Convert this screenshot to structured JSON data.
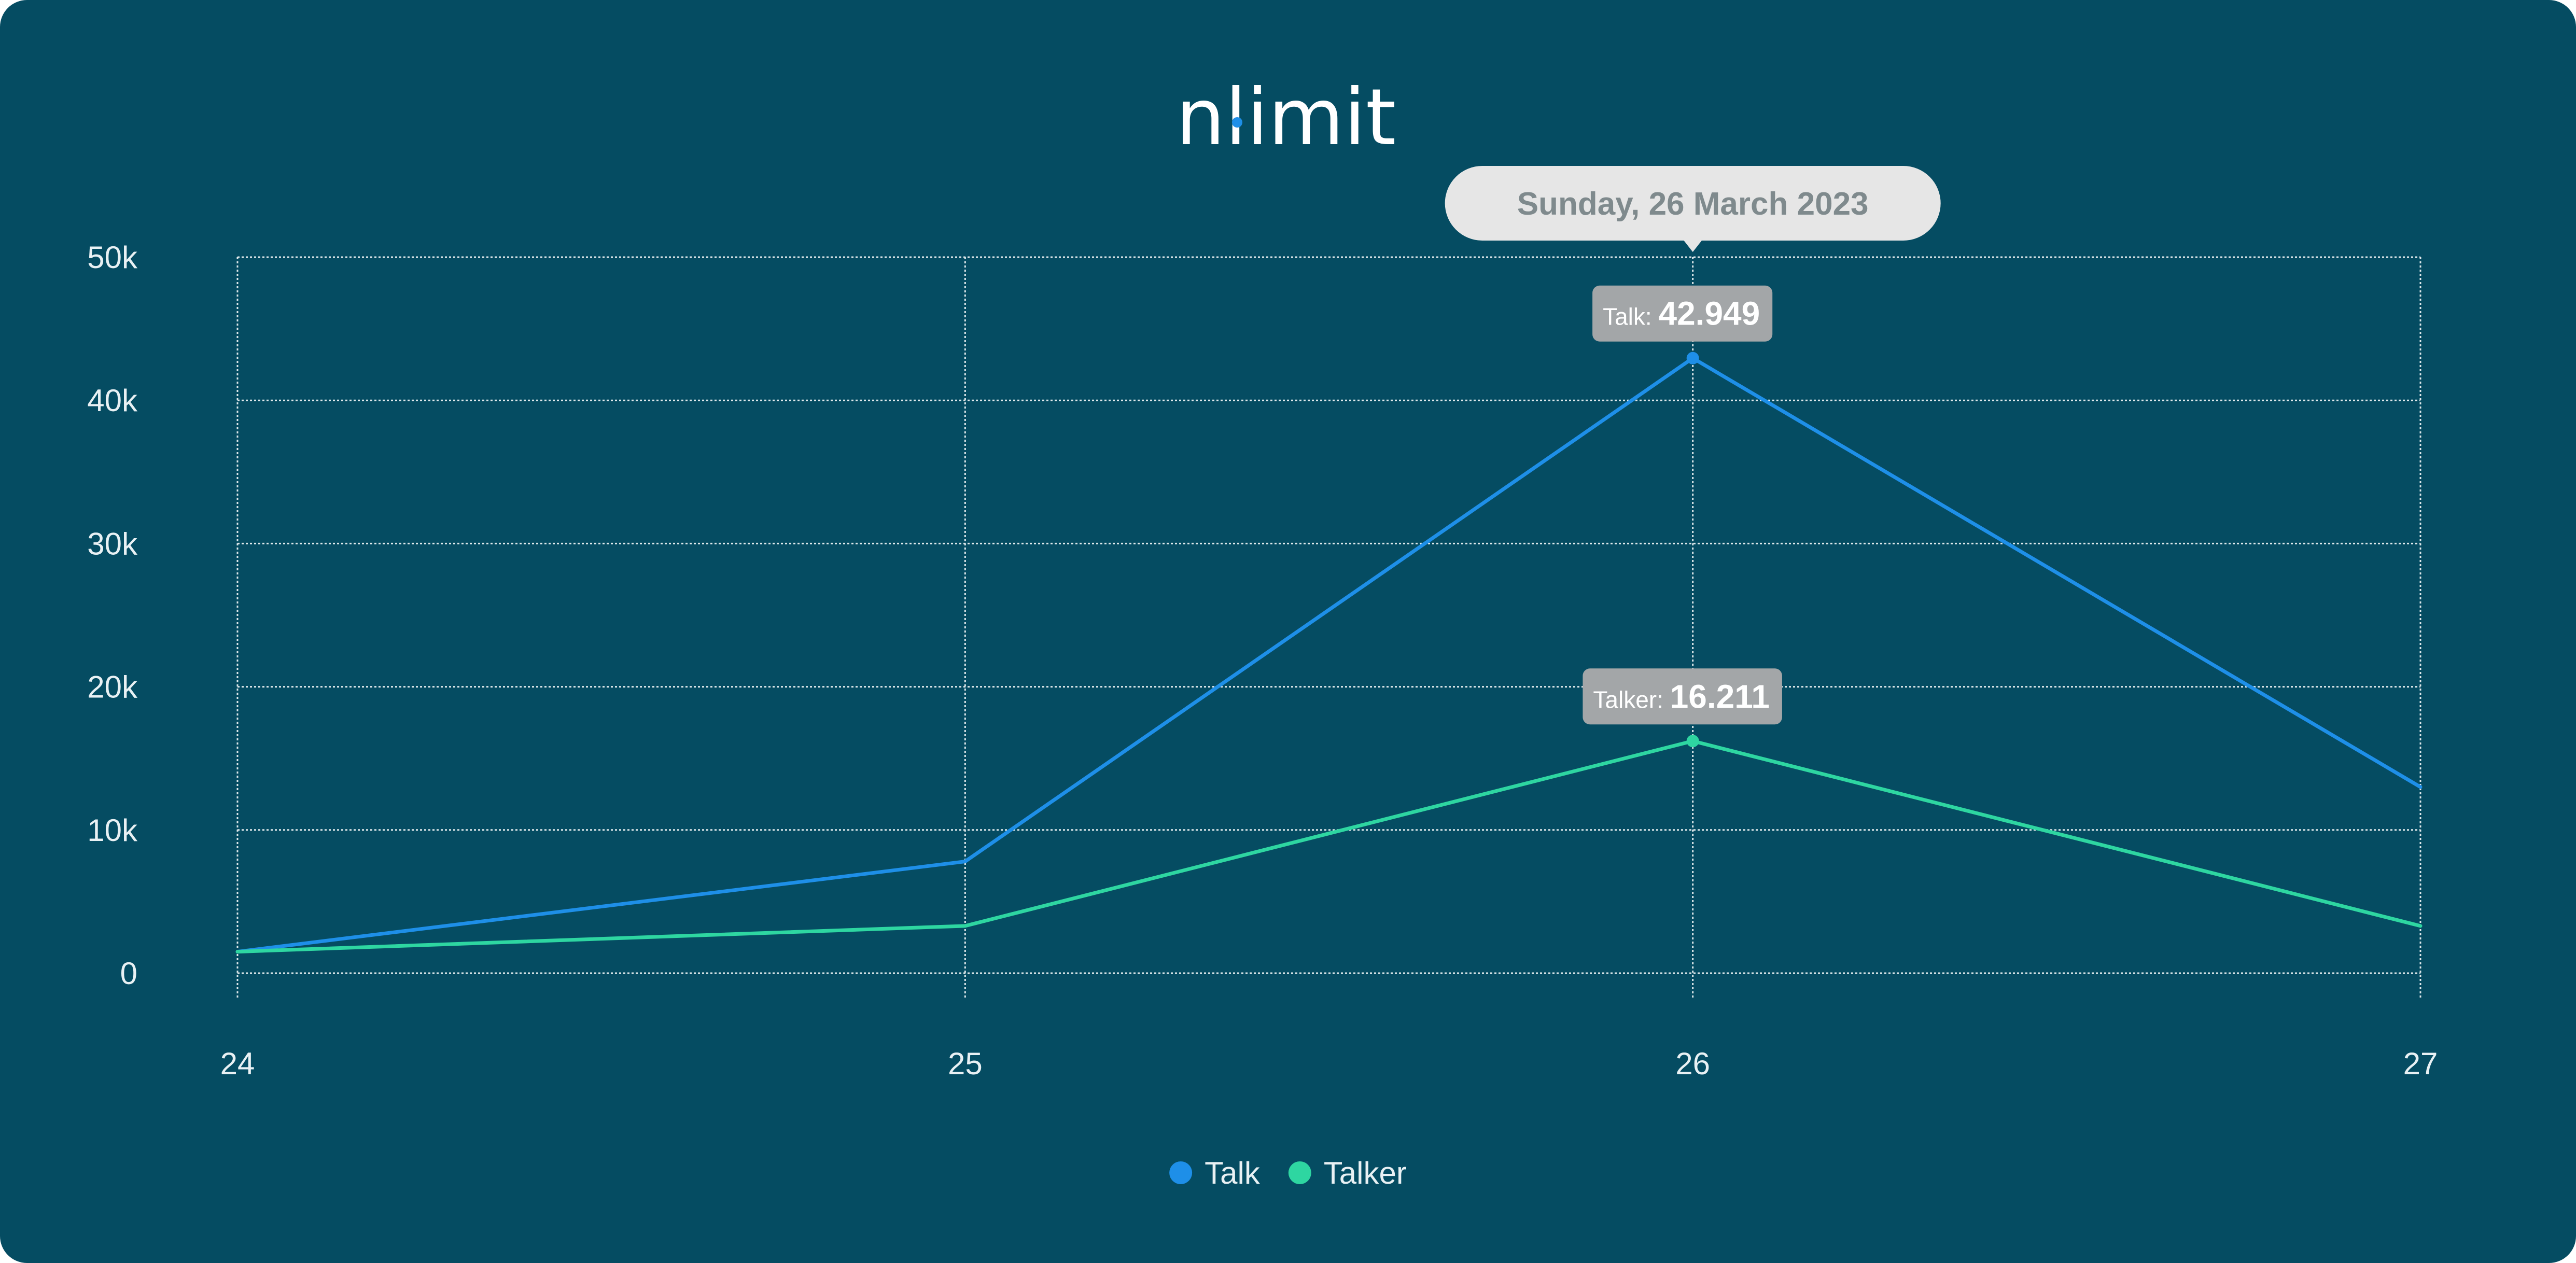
{
  "logo": {
    "text": "nlimit",
    "dot_color": "#1e8fe8"
  },
  "chart_data": {
    "type": "line",
    "title": "",
    "xlabel": "",
    "ylabel": "",
    "x": [
      24,
      25,
      26,
      27
    ],
    "x_tick_labels": [
      "24",
      "25",
      "26",
      "27"
    ],
    "y_tick_labels": [
      "0",
      "10k",
      "20k",
      "30k",
      "40k",
      "50k"
    ],
    "y_ticks": [
      0,
      10000,
      20000,
      30000,
      40000,
      50000
    ],
    "ylim": [
      0,
      50000
    ],
    "xlim": [
      24,
      27
    ],
    "grid": true,
    "grid_style": "dotted",
    "legend_position": "bottom-center",
    "series": [
      {
        "name": "Talk",
        "color": "#1e8fe8",
        "values": [
          1500,
          7800,
          42949,
          13000
        ]
      },
      {
        "name": "Talker",
        "color": "#2ed6a1",
        "values": [
          1500,
          3300,
          16211,
          3300
        ]
      }
    ],
    "hover": {
      "x": 26,
      "header_label": "Sunday, 26 March 2023",
      "items": [
        {
          "series_index": 0,
          "label": "Talk:",
          "value_text": "42.949"
        },
        {
          "series_index": 1,
          "label": "Talker:",
          "value_text": "16.211"
        }
      ]
    }
  },
  "colors": {
    "background": "#054c62",
    "grid": "#dfe8eb",
    "text": "#e9f1f4",
    "tooltip_bg": "#a3a6a8",
    "header_tooltip_bg": "#e6e6e6",
    "header_tooltip_text": "#7f8a8d"
  }
}
